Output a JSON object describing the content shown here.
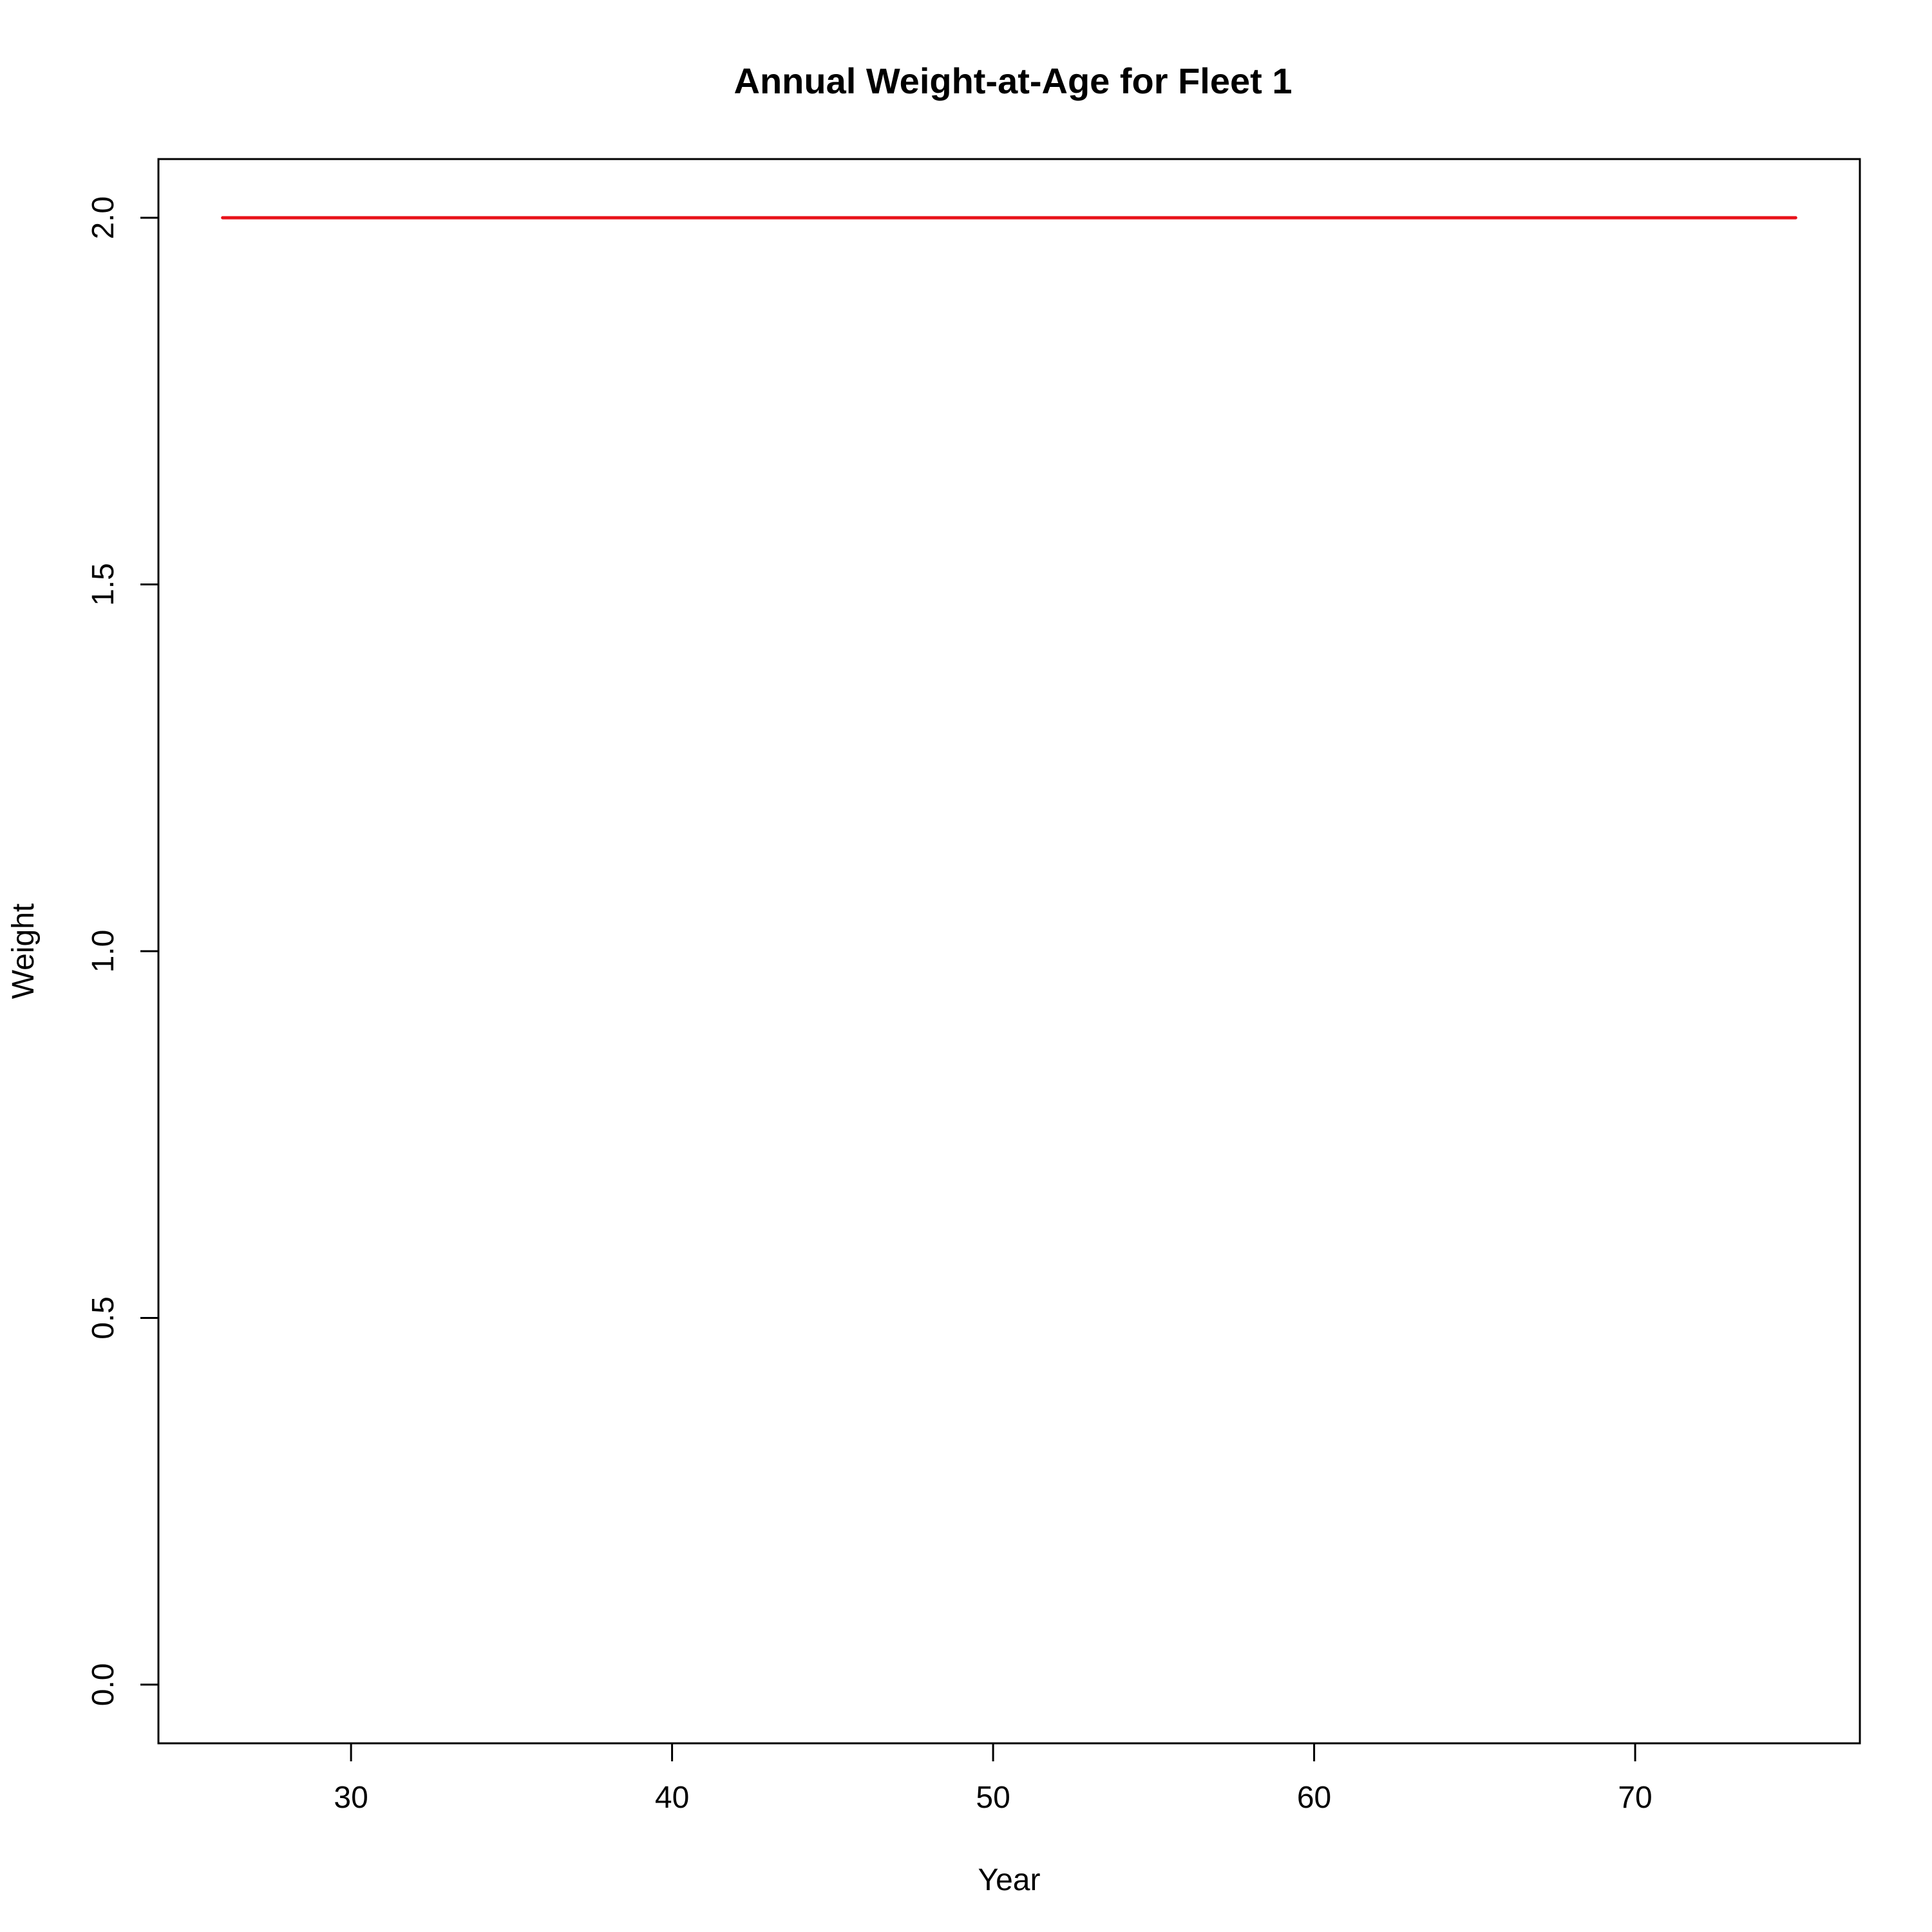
{
  "chart_data": {
    "type": "line",
    "title": "Annual Weight-at-Age for Fleet 1",
    "xlabel": "Year",
    "ylabel": "Weight",
    "xlim": [
      24,
      77
    ],
    "ylim": [
      -0.08,
      2.08
    ],
    "x_ticks": [
      30,
      40,
      50,
      60,
      70
    ],
    "x_tick_labels": [
      "30",
      "40",
      "50",
      "60",
      "70"
    ],
    "y_ticks": [
      0.0,
      0.5,
      1.0,
      1.5,
      2.0
    ],
    "y_tick_labels": [
      "0.0",
      "0.5",
      "1.0",
      "1.5",
      "2.0"
    ],
    "grid": false,
    "series": [
      {
        "color": "#e8121a",
        "x": [
          26,
          27,
          28,
          29,
          30,
          31,
          32,
          33,
          34,
          35,
          36,
          37,
          38,
          39,
          40,
          41,
          42,
          43,
          44,
          45,
          46,
          47,
          48,
          49,
          50,
          51,
          52,
          53,
          54,
          55,
          56,
          57,
          58,
          59,
          60,
          61,
          62,
          63,
          64,
          65,
          66,
          67,
          68,
          69,
          70,
          71,
          72,
          73,
          74,
          75
        ],
        "y": [
          2.0,
          2.0,
          2.0,
          2.0,
          2.0,
          2.0,
          2.0,
          2.0,
          2.0,
          2.0,
          2.0,
          2.0,
          2.0,
          2.0,
          2.0,
          2.0,
          2.0,
          2.0,
          2.0,
          2.0,
          2.0,
          2.0,
          2.0,
          2.0,
          2.0,
          2.0,
          2.0,
          2.0,
          2.0,
          2.0,
          2.0,
          2.0,
          2.0,
          2.0,
          2.0,
          2.0,
          2.0,
          2.0,
          2.0,
          2.0,
          2.0,
          2.0,
          2.0,
          2.0,
          2.0,
          2.0,
          2.0,
          2.0,
          2.0,
          2.0
        ]
      }
    ]
  }
}
